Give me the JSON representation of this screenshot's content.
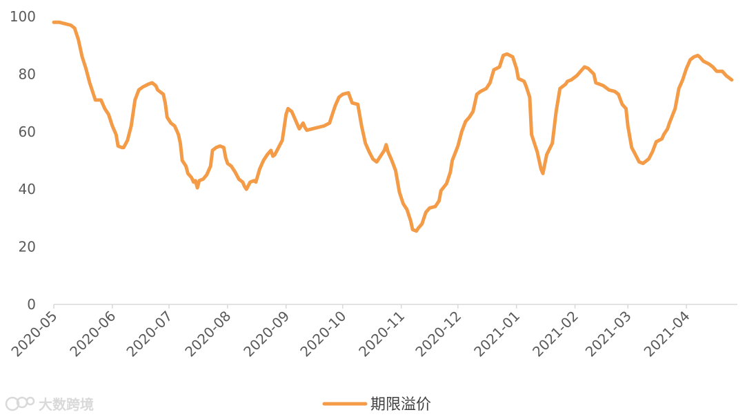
{
  "chart_data": {
    "type": "line",
    "title": "",
    "xlabel": "",
    "ylabel": "",
    "ylim": [
      0,
      100
    ],
    "y_ticks": [
      "0",
      "20",
      "40",
      "60",
      "80",
      "100"
    ],
    "x_tick_labels": [
      "2020-05",
      "2020-06",
      "2020-07",
      "2020-08",
      "2020-09",
      "2020-10",
      "2020-11",
      "2020-12",
      "2021-01",
      "2021-02",
      "2021-03",
      "2021-04"
    ],
    "grid": false,
    "legend_position": "bottom",
    "series": [
      {
        "name": "期限溢价",
        "color": "#f39b47",
        "points": [
          [
            "2020-05-01",
            98
          ],
          [
            "2020-05-04",
            98
          ],
          [
            "2020-05-07",
            97.5
          ],
          [
            "2020-05-10",
            97
          ],
          [
            "2020-05-12",
            96
          ],
          [
            "2020-05-14",
            92
          ],
          [
            "2020-05-16",
            86
          ],
          [
            "2020-05-18",
            82
          ],
          [
            "2020-05-20",
            77
          ],
          [
            "2020-05-22",
            73
          ],
          [
            "2020-05-23",
            71
          ],
          [
            "2020-05-26",
            71
          ],
          [
            "2020-05-28",
            68
          ],
          [
            "2020-05-30",
            66
          ],
          [
            "2020-06-01",
            62
          ],
          [
            "2020-06-03",
            59
          ],
          [
            "2020-06-04",
            55
          ],
          [
            "2020-06-06",
            54.5
          ],
          [
            "2020-06-07",
            54.5
          ],
          [
            "2020-06-09",
            57
          ],
          [
            "2020-06-11",
            62
          ],
          [
            "2020-06-13",
            71
          ],
          [
            "2020-06-15",
            74.5
          ],
          [
            "2020-06-17",
            75.5
          ],
          [
            "2020-06-20",
            76.5
          ],
          [
            "2020-06-22",
            77
          ],
          [
            "2020-06-24",
            76
          ],
          [
            "2020-06-25",
            74.5
          ],
          [
            "2020-06-28",
            73
          ],
          [
            "2020-06-29",
            70
          ],
          [
            "2020-06-30",
            65
          ],
          [
            "2020-07-02",
            63
          ],
          [
            "2020-07-04",
            62
          ],
          [
            "2020-07-06",
            59
          ],
          [
            "2020-07-07",
            56
          ],
          [
            "2020-07-08",
            50
          ],
          [
            "2020-07-10",
            48
          ],
          [
            "2020-07-11",
            45.5
          ],
          [
            "2020-07-13",
            44
          ],
          [
            "2020-07-14",
            42.5
          ],
          [
            "2020-07-15",
            43
          ],
          [
            "2020-07-16",
            40.5
          ],
          [
            "2020-07-17",
            43
          ],
          [
            "2020-07-19",
            43.5
          ],
          [
            "2020-07-21",
            45
          ],
          [
            "2020-07-23",
            48
          ],
          [
            "2020-07-24",
            53.5
          ],
          [
            "2020-07-26",
            54.5
          ],
          [
            "2020-07-28",
            55
          ],
          [
            "2020-07-30",
            54.5
          ],
          [
            "2020-07-31",
            51
          ],
          [
            "2020-08-01",
            49
          ],
          [
            "2020-08-03",
            48
          ],
          [
            "2020-08-05",
            46
          ],
          [
            "2020-08-07",
            43.5
          ],
          [
            "2020-08-09",
            42.5
          ],
          [
            "2020-08-10",
            41
          ],
          [
            "2020-08-11",
            40
          ],
          [
            "2020-08-13",
            42.5
          ],
          [
            "2020-08-15",
            43
          ],
          [
            "2020-08-16",
            42.5
          ],
          [
            "2020-08-18",
            47
          ],
          [
            "2020-08-20",
            50
          ],
          [
            "2020-08-22",
            52
          ],
          [
            "2020-08-24",
            53.5
          ],
          [
            "2020-08-25",
            51.5
          ],
          [
            "2020-08-26",
            52
          ],
          [
            "2020-08-28",
            54.5
          ],
          [
            "2020-08-30",
            57
          ],
          [
            "2020-09-01",
            66
          ],
          [
            "2020-09-02",
            68
          ],
          [
            "2020-09-04",
            67
          ],
          [
            "2020-09-05",
            65.5
          ],
          [
            "2020-09-07",
            62.5
          ],
          [
            "2020-09-08",
            61
          ],
          [
            "2020-09-10",
            63
          ],
          [
            "2020-09-11",
            61.5
          ],
          [
            "2020-09-12",
            60.5
          ],
          [
            "2020-09-15",
            61
          ],
          [
            "2020-09-18",
            61.5
          ],
          [
            "2020-09-21",
            62
          ],
          [
            "2020-09-24",
            63
          ],
          [
            "2020-09-25",
            65
          ],
          [
            "2020-09-27",
            69
          ],
          [
            "2020-09-29",
            72
          ],
          [
            "2020-10-01",
            73
          ],
          [
            "2020-10-04",
            73.5
          ],
          [
            "2020-10-06",
            70
          ],
          [
            "2020-10-09",
            69.5
          ],
          [
            "2020-10-11",
            62
          ],
          [
            "2020-10-13",
            56
          ],
          [
            "2020-10-15",
            53
          ],
          [
            "2020-10-17",
            50.5
          ],
          [
            "2020-10-19",
            49.5
          ],
          [
            "2020-10-21",
            51.5
          ],
          [
            "2020-10-23",
            53.5
          ],
          [
            "2020-10-24",
            55.5
          ],
          [
            "2020-10-25",
            53
          ],
          [
            "2020-10-27",
            50
          ],
          [
            "2020-10-29",
            46.5
          ],
          [
            "2020-10-31",
            39
          ],
          [
            "2020-11-02",
            35
          ],
          [
            "2020-11-04",
            33
          ],
          [
            "2020-11-06",
            29
          ],
          [
            "2020-11-07",
            26
          ],
          [
            "2020-11-09",
            25.5
          ],
          [
            "2020-11-10",
            26.5
          ],
          [
            "2020-11-12",
            28
          ],
          [
            "2020-11-14",
            32
          ],
          [
            "2020-11-16",
            33.5
          ],
          [
            "2020-11-19",
            34
          ],
          [
            "2020-11-21",
            36
          ],
          [
            "2020-11-22",
            39.5
          ],
          [
            "2020-11-25",
            42
          ],
          [
            "2020-11-27",
            46
          ],
          [
            "2020-11-28",
            50
          ],
          [
            "2020-12-01",
            55
          ],
          [
            "2020-12-03",
            60
          ],
          [
            "2020-12-05",
            63.5
          ],
          [
            "2020-12-07",
            65
          ],
          [
            "2020-12-09",
            67
          ],
          [
            "2020-12-10",
            70
          ],
          [
            "2020-12-11",
            73
          ],
          [
            "2020-12-13",
            74
          ],
          [
            "2020-12-16",
            75
          ],
          [
            "2020-12-18",
            77
          ],
          [
            "2020-12-20",
            81.5
          ],
          [
            "2020-12-23",
            82.5
          ],
          [
            "2020-12-25",
            86.5
          ],
          [
            "2020-12-27",
            87
          ],
          [
            "2020-12-30",
            86
          ],
          [
            "2021-01-01",
            82
          ],
          [
            "2021-01-02",
            78.5
          ],
          [
            "2021-01-05",
            77.5
          ],
          [
            "2021-01-06",
            76
          ],
          [
            "2021-01-08",
            72
          ],
          [
            "2021-01-09",
            59
          ],
          [
            "2021-01-12",
            53
          ],
          [
            "2021-01-14",
            47
          ],
          [
            "2021-01-15",
            45.5
          ],
          [
            "2021-01-17",
            52
          ],
          [
            "2021-01-20",
            56
          ],
          [
            "2021-01-22",
            67
          ],
          [
            "2021-01-24",
            75
          ],
          [
            "2021-01-27",
            76.5
          ],
          [
            "2021-01-28",
            77.5
          ],
          [
            "2021-01-30",
            78
          ],
          [
            "2021-02-02",
            79.5
          ],
          [
            "2021-02-04",
            81
          ],
          [
            "2021-02-06",
            82.5
          ],
          [
            "2021-02-08",
            82
          ],
          [
            "2021-02-11",
            80
          ],
          [
            "2021-02-12",
            77
          ],
          [
            "2021-02-16",
            76
          ],
          [
            "2021-02-19",
            74.5
          ],
          [
            "2021-02-22",
            74
          ],
          [
            "2021-02-24",
            73
          ],
          [
            "2021-02-26",
            69.5
          ],
          [
            "2021-02-28",
            68
          ],
          [
            "2021-03-01",
            62
          ],
          [
            "2021-03-03",
            54.5
          ],
          [
            "2021-03-05",
            52
          ],
          [
            "2021-03-07",
            49.5
          ],
          [
            "2021-03-09",
            49
          ],
          [
            "2021-03-10",
            49.5
          ],
          [
            "2021-03-12",
            50.5
          ],
          [
            "2021-03-14",
            53
          ],
          [
            "2021-03-16",
            56.5
          ],
          [
            "2021-03-19",
            57.5
          ],
          [
            "2021-03-20",
            59
          ],
          [
            "2021-03-22",
            61
          ],
          [
            "2021-03-23",
            63
          ],
          [
            "2021-03-26",
            68
          ],
          [
            "2021-03-28",
            75
          ],
          [
            "2021-03-30",
            78
          ],
          [
            "2021-04-01",
            82
          ],
          [
            "2021-04-03",
            85
          ],
          [
            "2021-04-05",
            86
          ],
          [
            "2021-04-07",
            86.5
          ],
          [
            "2021-04-08",
            86
          ],
          [
            "2021-04-10",
            84.5
          ],
          [
            "2021-04-13",
            83.5
          ],
          [
            "2021-04-15",
            82.5
          ],
          [
            "2021-04-17",
            81
          ],
          [
            "2021-04-20",
            81
          ],
          [
            "2021-04-22",
            79.5
          ],
          [
            "2021-04-25",
            78
          ]
        ]
      }
    ]
  },
  "watermark": {
    "text": "大数跨境",
    "logo_text": "大数跨境"
  }
}
